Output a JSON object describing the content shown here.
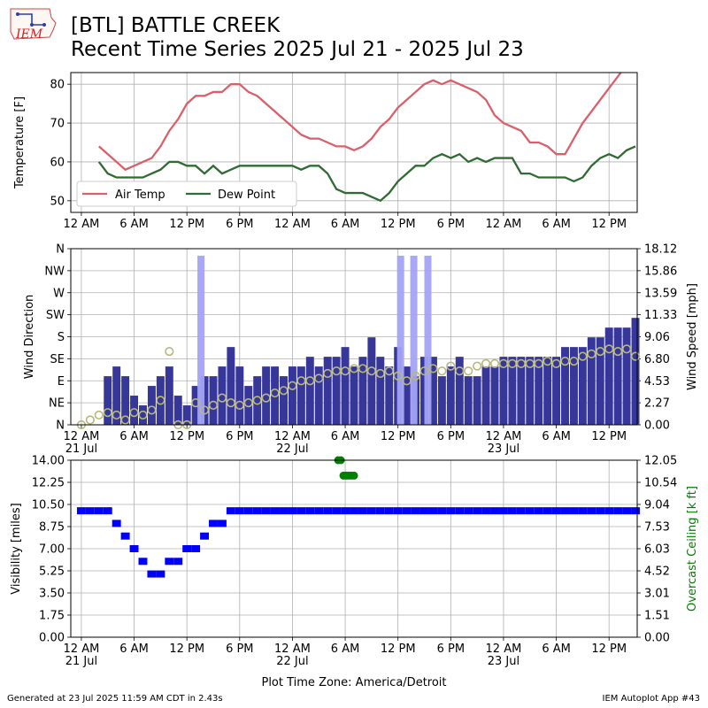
{
  "header": {
    "station_title": "[BTL] BATTLE CREEK",
    "subtitle": "Recent Time Series 2025 Jul 21 - 2025 Jul 23",
    "logo_text": "IEM"
  },
  "footer": {
    "generated": "Generated at 23 Jul 2025 11:59 AM CDT in 2.43s",
    "app": "IEM Autoplot App #43",
    "timezone_label": "Plot Time Zone: America/Detroit"
  },
  "colors": {
    "air_temp": "#d9606a",
    "dew_point": "#2f6b33",
    "wind_speed": "#37379a",
    "wind_gust": "#a3a3f5",
    "wind_dir": "#b8b87a",
    "visibility": "#0000ff",
    "ceiling": "#008000",
    "grid": "#b0b0b0"
  },
  "x_axis": {
    "ticks": [
      {
        "h": 0,
        "label": "12 AM",
        "date": "21 Jul"
      },
      {
        "h": 6,
        "label": "6 AM"
      },
      {
        "h": 12,
        "label": "12 PM"
      },
      {
        "h": 18,
        "label": "6 PM"
      },
      {
        "h": 24,
        "label": "12 AM",
        "date": "22 Jul"
      },
      {
        "h": 30,
        "label": "6 AM"
      },
      {
        "h": 36,
        "label": "12 PM"
      },
      {
        "h": 42,
        "label": "6 PM"
      },
      {
        "h": 48,
        "label": "12 AM",
        "date": "23 Jul"
      },
      {
        "h": 54,
        "label": "6 AM"
      },
      {
        "h": 60,
        "label": "12 PM"
      }
    ]
  },
  "chart_data": [
    {
      "type": "line",
      "ylabel": "Temperature [F]",
      "ylim": [
        47,
        83
      ],
      "yticks": [
        "50",
        "60",
        "70",
        "80"
      ],
      "grid": true,
      "legend": "bottom-left",
      "series": [
        {
          "name": "Air Temp",
          "x": [
            2,
            3,
            4,
            5,
            6,
            7,
            8,
            9,
            10,
            11,
            12,
            13,
            14,
            15,
            16,
            17,
            18,
            19,
            20,
            21,
            22,
            23,
            24,
            25,
            26,
            27,
            28,
            29,
            30,
            31,
            32,
            33,
            34,
            35,
            36,
            37,
            38,
            39,
            40,
            41,
            42,
            43,
            44,
            45,
            46,
            47,
            48,
            49,
            50,
            51,
            52,
            53,
            54,
            55,
            56,
            57,
            58,
            59,
            60,
            61,
            62,
            63
          ],
          "values": [
            64,
            62,
            60,
            58,
            59,
            60,
            61,
            64,
            68,
            71,
            75,
            77,
            77,
            78,
            78,
            80,
            80,
            78,
            77,
            75,
            73,
            71,
            69,
            67,
            66,
            66,
            65,
            64,
            64,
            63,
            64,
            66,
            69,
            71,
            74,
            76,
            78,
            80,
            81,
            80,
            81,
            80,
            79,
            78,
            76,
            72,
            70,
            69,
            68,
            65,
            65,
            64,
            62,
            62,
            66,
            70,
            73,
            76,
            79,
            82,
            85,
            87
          ]
        },
        {
          "name": "Dew Point",
          "x": [
            2,
            3,
            4,
            5,
            6,
            7,
            8,
            9,
            10,
            11,
            12,
            13,
            14,
            15,
            16,
            17,
            18,
            19,
            20,
            21,
            22,
            23,
            24,
            25,
            26,
            27,
            28,
            29,
            30,
            31,
            32,
            33,
            34,
            35,
            36,
            37,
            38,
            39,
            40,
            41,
            42,
            43,
            44,
            45,
            46,
            47,
            48,
            49,
            50,
            51,
            52,
            53,
            54,
            55,
            56,
            57,
            58,
            59,
            60,
            61,
            62,
            63
          ],
          "values": [
            60,
            57,
            56,
            56,
            56,
            56,
            57,
            58,
            60,
            60,
            59,
            59,
            57,
            59,
            57,
            58,
            59,
            59,
            59,
            59,
            59,
            59,
            59,
            58,
            59,
            59,
            57,
            53,
            52,
            52,
            52,
            51,
            50,
            52,
            55,
            57,
            59,
            59,
            61,
            62,
            61,
            62,
            60,
            61,
            60,
            61,
            61,
            61,
            57,
            57,
            56,
            56,
            56,
            56,
            55,
            56,
            59,
            61,
            62,
            61,
            63,
            64
          ]
        }
      ]
    },
    {
      "type": "bar",
      "ylabel": "Wind Direction",
      "y2label": "Wind Speed [mph]",
      "direction_ticks": [
        "N",
        "NE",
        "E",
        "SE",
        "S",
        "SW",
        "W",
        "NW",
        "N"
      ],
      "speed_ticks": [
        "0.00",
        "2.27",
        "4.53",
        "6.80",
        "9.06",
        "11.33",
        "13.59",
        "15.86",
        "18.12"
      ],
      "ylim": [
        0,
        18.12
      ],
      "grid": true,
      "series": [
        {
          "name": "Wind Speed",
          "x": [
            1,
            2,
            3,
            4,
            5,
            6,
            7,
            8,
            9,
            10,
            11,
            12,
            13,
            14,
            15,
            16,
            17,
            18,
            19,
            20,
            21,
            22,
            23,
            24,
            25,
            26,
            27,
            28,
            29,
            30,
            31,
            32,
            33,
            34,
            35,
            36,
            37,
            38,
            39,
            40,
            41,
            42,
            43,
            44,
            45,
            46,
            47,
            48,
            49,
            50,
            51,
            52,
            53,
            54,
            55,
            56,
            57,
            58,
            59,
            60,
            61,
            62,
            63
          ],
          "values": [
            0,
            0,
            5,
            6,
            5,
            3,
            2,
            4,
            5,
            6,
            3,
            2,
            4,
            5,
            5,
            6,
            8,
            6,
            4,
            5,
            6,
            6,
            5,
            6,
            6,
            7,
            6,
            7,
            7,
            8,
            6,
            7,
            9,
            7,
            6,
            8,
            6,
            5,
            7,
            7,
            5,
            6,
            7,
            5,
            5,
            6,
            6,
            7,
            7,
            7,
            7,
            7,
            7,
            7,
            8,
            8,
            8,
            9,
            9,
            10,
            10,
            10,
            11
          ]
        },
        {
          "name": "Wind Gust",
          "x": [
            13.6,
            36.3,
            37.8,
            39.4
          ],
          "values": [
            17.4,
            17.4,
            17.4,
            17.4
          ]
        },
        {
          "name": "Wind Direction",
          "x": [
            0,
            1,
            2,
            3,
            4,
            5,
            6,
            7,
            8,
            9,
            10,
            11,
            12,
            13,
            14,
            15,
            16,
            17,
            18,
            19,
            20,
            21,
            22,
            23,
            24,
            25,
            26,
            27,
            28,
            29,
            30,
            31,
            32,
            33,
            34,
            35,
            36,
            37,
            38,
            39,
            40,
            41,
            42,
            43,
            44,
            45,
            46,
            47,
            48,
            49,
            50,
            51,
            52,
            53,
            54,
            55,
            56,
            57,
            58,
            59,
            60,
            61,
            62,
            63
          ],
          "values": [
            0,
            10,
            20,
            25,
            20,
            10,
            25,
            20,
            30,
            50,
            150,
            0,
            0,
            45,
            30,
            40,
            55,
            45,
            40,
            45,
            50,
            55,
            65,
            70,
            80,
            90,
            90,
            95,
            105,
            110,
            110,
            115,
            115,
            110,
            105,
            110,
            100,
            90,
            100,
            110,
            115,
            110,
            120,
            110,
            110,
            120,
            125,
            125,
            125,
            125,
            125,
            125,
            125,
            130,
            125,
            130,
            130,
            140,
            145,
            150,
            155,
            150,
            155,
            140
          ]
        }
      ]
    },
    {
      "type": "scatter",
      "ylabel": "Visibility [miles]",
      "y2label": "Overcast Ceiling [k ft]",
      "ylim": [
        0,
        14
      ],
      "yticks": [
        "0.00",
        "1.75",
        "3.50",
        "5.25",
        "7.00",
        "8.75",
        "10.50",
        "12.25",
        "14.00"
      ],
      "y2ticks": [
        "0.00",
        "1.51",
        "3.01",
        "4.52",
        "6.03",
        "7.53",
        "9.04",
        "10.54",
        "12.05"
      ],
      "y2lim": [
        0,
        12.05
      ],
      "grid": true,
      "series": [
        {
          "name": "Visibility",
          "x": [
            0,
            1,
            2,
            3,
            4,
            5,
            6,
            7,
            8,
            9,
            10,
            11,
            12,
            13,
            14,
            15,
            16,
            17,
            18,
            19,
            20,
            21,
            22,
            23,
            24,
            25,
            26,
            27,
            28,
            29,
            30,
            31,
            32,
            33,
            34,
            35,
            36,
            37,
            38,
            39,
            40,
            41,
            42,
            43,
            44,
            45,
            46,
            47,
            48,
            49,
            50,
            51,
            52,
            53,
            54,
            55,
            56,
            57,
            58,
            59,
            60,
            61,
            62,
            63
          ],
          "values": [
            10,
            10,
            10,
            10,
            9,
            8,
            7,
            6,
            5,
            5,
            6,
            6,
            7,
            7,
            8,
            9,
            9,
            10,
            10,
            10,
            10,
            10,
            10,
            10,
            10,
            10,
            10,
            10,
            10,
            10,
            10,
            10,
            10,
            10,
            10,
            10,
            10,
            10,
            10,
            10,
            10,
            10,
            10,
            10,
            10,
            10,
            10,
            10,
            10,
            10,
            10,
            10,
            10,
            10,
            10,
            10,
            10,
            10,
            10,
            10,
            10,
            10,
            10,
            10
          ]
        },
        {
          "name": "Overcast Ceiling",
          "x": [
            29.2,
            29.5,
            29.8,
            30.1,
            30.4,
            30.7,
            31.0
          ],
          "values": [
            12.05,
            12.05,
            11.0,
            11.0,
            11.0,
            11.0,
            11.0
          ]
        }
      ]
    }
  ]
}
